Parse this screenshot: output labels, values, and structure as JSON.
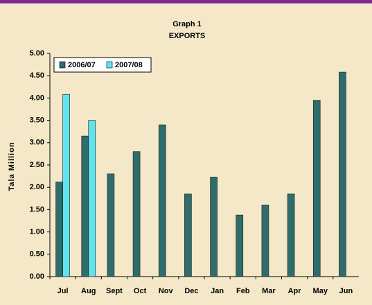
{
  "chart_data": {
    "type": "bar",
    "title": "Graph 1",
    "subtitle": "EXPORTS",
    "y_label": "Tala Million",
    "categories": [
      "Jul",
      "Aug",
      "Sept",
      "Oct",
      "Nov",
      "Dec",
      "Jan",
      "Feb",
      "Mar",
      "Apr",
      "May",
      "Jun"
    ],
    "series": [
      {
        "name": "2006/07",
        "color": "#2f6d6b",
        "values": [
          2.12,
          3.15,
          2.3,
          2.8,
          3.4,
          1.85,
          2.23,
          1.38,
          1.6,
          1.85,
          3.95,
          4.58
        ]
      },
      {
        "name": "2007/08",
        "color": "#5fe3f0",
        "values": [
          4.08,
          3.5,
          null,
          null,
          null,
          null,
          null,
          null,
          null,
          null,
          null,
          null
        ]
      }
    ],
    "ylim": [
      0,
      5
    ],
    "yticks": [
      {
        "value": 0,
        "label": "0.00"
      },
      {
        "value": 0.5,
        "label": "0.50"
      },
      {
        "value": 1,
        "label": "1.00"
      },
      {
        "value": 1.5,
        "label": "1.50"
      },
      {
        "value": 2,
        "label": "2.00"
      },
      {
        "value": 2.5,
        "label": "2.50"
      },
      {
        "value": 3,
        "label": "3.00"
      },
      {
        "value": 3.5,
        "label": "3.50"
      },
      {
        "value": 4,
        "label": "4.00"
      },
      {
        "value": 4.5,
        "label": "4.50"
      },
      {
        "value": 5,
        "label": "5.00"
      }
    ],
    "grid": false,
    "legend": "top-left"
  }
}
